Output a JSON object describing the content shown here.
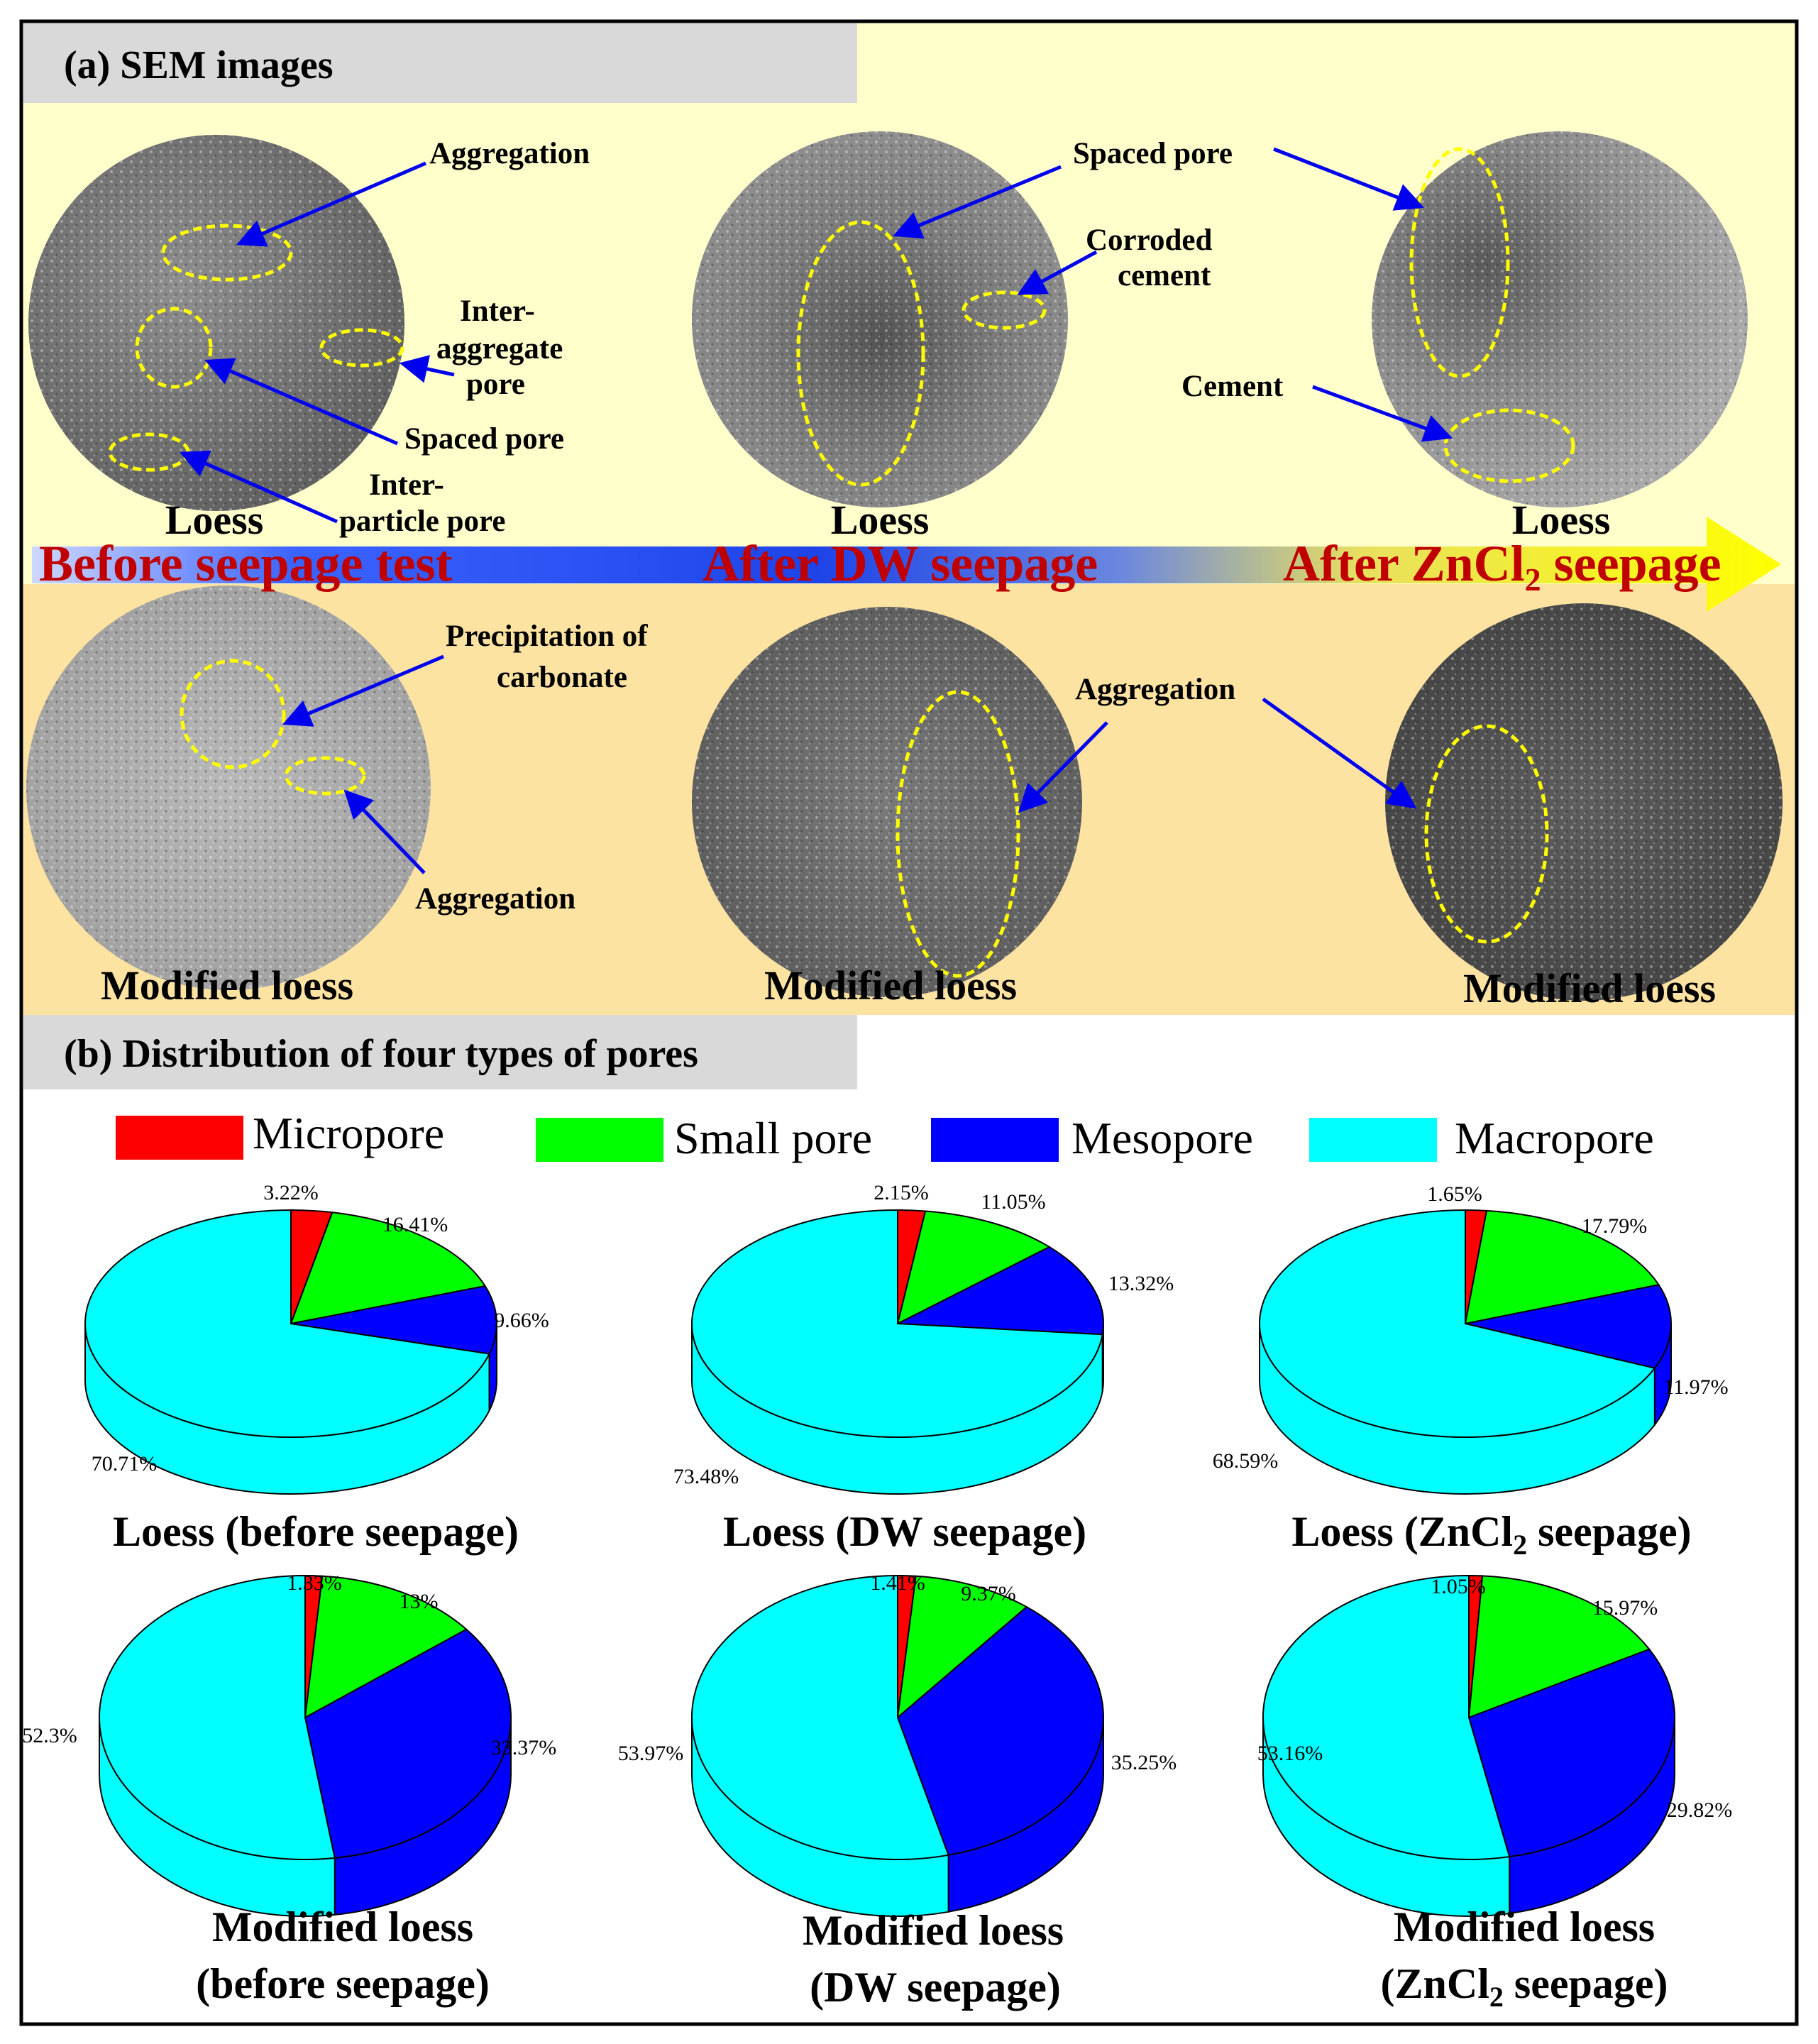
{
  "panel_a": {
    "title": "(a) SEM images",
    "arrow_text": {
      "left": "Before seepage test",
      "mid": "After DW seepage",
      "right_main": "After ZnCl",
      "right_sub": "2",
      "right_tail": " seepage"
    },
    "image_labels": {
      "loess": "Loess",
      "modified": "Modified loess"
    },
    "annotations": {
      "aggregation": "Aggregation",
      "inter_aggregate_1": "Inter-",
      "inter_aggregate_2": "aggregate",
      "inter_aggregate_3": "pore",
      "spaced_pore": "Spaced pore",
      "inter_particle_1": "Inter-",
      "inter_particle_2": "particle pore",
      "corroded_1": "Corroded",
      "corroded_2": "cement",
      "cement": "Cement",
      "precip_1": "Precipitation of",
      "precip_2": "carbonate"
    }
  },
  "panel_b": {
    "title": "(b) Distribution of four types of pores"
  },
  "colors": {
    "micropore": "#ff0000",
    "small": "#00ff00",
    "meso": "#0000ff",
    "macro": "#00ffff",
    "top_band": "#ffffcc",
    "bottom_band": "#fde3a1",
    "title_bg": "#d9d9d9",
    "arrow_text": "#c00000",
    "ellipse": "#ffff00",
    "pointer": "#0000ee"
  },
  "chart_data": {
    "type": "pie",
    "legend": [
      "Micropore",
      "Small pore",
      "Mesopore",
      "Macropore"
    ],
    "charts": [
      {
        "title": "Loess (before seepage)",
        "values": [
          3.22,
          16.41,
          9.66,
          70.71
        ],
        "labels": [
          "3.22%",
          "16.41%",
          "9.66%",
          "70.71%"
        ]
      },
      {
        "title": "Loess (DW seepage)",
        "values": [
          2.15,
          11.05,
          13.32,
          73.48
        ],
        "labels": [
          "2.15%",
          "11.05%",
          "13.32%",
          "73.48%"
        ]
      },
      {
        "title_main": "Loess (ZnCl",
        "title_sub": "2",
        "title_tail": " seepage)",
        "values": [
          1.65,
          17.79,
          11.97,
          68.59
        ],
        "labels": [
          "1.65%",
          "17.79%",
          "11.97%",
          "68.59%"
        ]
      },
      {
        "title": "Modified loess",
        "title2": "(before seepage)",
        "values": [
          1.33,
          13,
          33.37,
          52.3
        ],
        "labels": [
          "1.33%",
          "13%",
          "33.37%",
          "52.3%"
        ]
      },
      {
        "title": "Modified loess",
        "title2": "(DW seepage)",
        "values": [
          1.41,
          9.37,
          35.25,
          53.97
        ],
        "labels": [
          "1.41%",
          "9.37%",
          "35.25%",
          "53.97%"
        ]
      },
      {
        "title": "Modified loess",
        "title2_main": "(ZnCl",
        "title2_sub": "2",
        "title2_tail": " seepage)",
        "values": [
          1.05,
          15.97,
          29.82,
          53.16
        ],
        "labels": [
          "1.05%",
          "15.97%",
          "29.82%",
          "53.16%"
        ]
      }
    ]
  }
}
